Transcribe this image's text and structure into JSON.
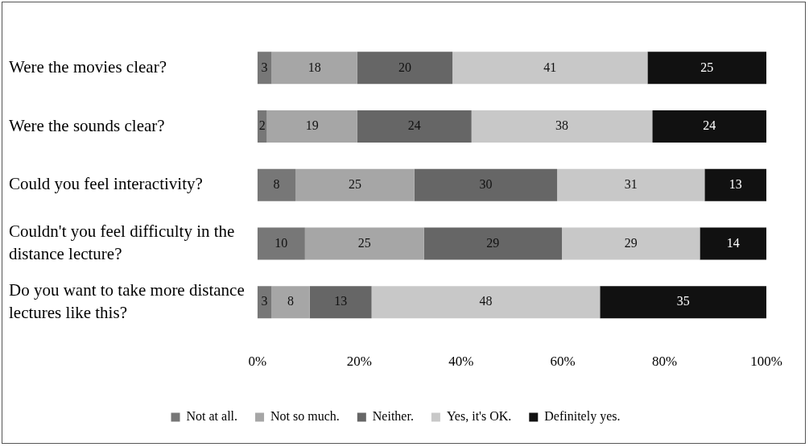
{
  "chart_data": {
    "type": "bar",
    "orientation": "horizontal",
    "stacked": true,
    "categories": [
      "Were the movies clear?",
      "Were the sounds clear?",
      "Could you feel interactivity?",
      "Couldn't you feel difficulty in the distance lecture?",
      "Do you want to take more distance lectures like this?"
    ],
    "series": [
      {
        "name": "Not at all.",
        "color": "#777777",
        "values": [
          3,
          2,
          8,
          10,
          3
        ]
      },
      {
        "name": "Not so much.",
        "color": "#a6a6a6",
        "values": [
          18,
          19,
          25,
          25,
          8
        ]
      },
      {
        "name": "Neither.",
        "color": "#666666",
        "values": [
          20,
          24,
          30,
          29,
          13
        ]
      },
      {
        "name": "Yes, it's OK.",
        "color": "#c8c8c8",
        "values": [
          41,
          38,
          31,
          29,
          48
        ]
      },
      {
        "name": "Definitely yes.",
        "color": "#111111",
        "values": [
          25,
          24,
          13,
          14,
          35
        ]
      }
    ],
    "xlim": [
      0,
      107
    ],
    "x2lim": [
      0,
      100
    ],
    "x2ticks": [
      {
        "value": 0,
        "label": "0%"
      },
      {
        "value": 20,
        "label": "20%"
      },
      {
        "value": 40,
        "label": "40%"
      },
      {
        "value": 60,
        "label": "60%"
      },
      {
        "value": 80,
        "label": "80%"
      },
      {
        "value": 100,
        "label": "100%"
      }
    ],
    "data_labels": true,
    "legend": "bottom"
  }
}
